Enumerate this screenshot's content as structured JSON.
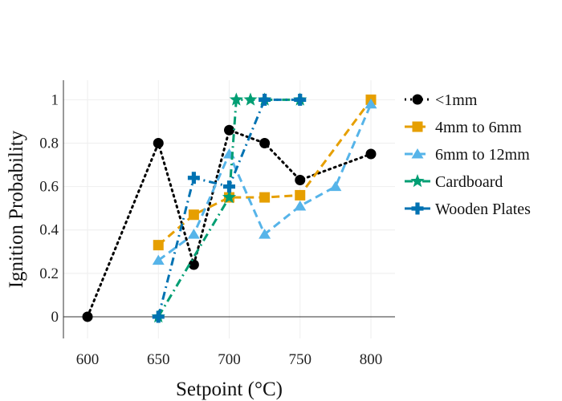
{
  "chart_data": {
    "type": "line",
    "xlabel": "Setpoint (°C)",
    "ylabel": "Ignition Probability",
    "xlim": [
      583,
      817
    ],
    "ylim": [
      -0.1,
      1.09
    ],
    "xticks": [
      600,
      650,
      700,
      750,
      800
    ],
    "yticks": [
      0,
      0.2,
      0.4,
      0.6,
      0.8,
      1
    ],
    "ytick_labels": [
      "0",
      "0.2",
      "0.4",
      "0.6",
      "0.8",
      "1"
    ],
    "grid": true,
    "legend_position": "right",
    "series": [
      {
        "name": "<1mm",
        "color": "#000000",
        "dash": "dot",
        "marker": "circle",
        "x": [
          600,
          650,
          675,
          700,
          725,
          750,
          800
        ],
        "y": [
          0,
          0.8,
          0.24,
          0.86,
          0.8,
          0.63,
          0.75
        ]
      },
      {
        "name": "4mm to 6mm",
        "color": "#E69F00",
        "dash": "dash",
        "marker": "square",
        "x": [
          650,
          675,
          700,
          725,
          750,
          800
        ],
        "y": [
          0.33,
          0.47,
          0.55,
          0.55,
          0.56,
          1
        ]
      },
      {
        "name": "6mm to 12mm",
        "color": "#56B4E9",
        "dash": "dash",
        "marker": "triangle",
        "x": [
          650,
          675,
          700,
          725,
          750,
          775,
          800
        ],
        "y": [
          0.26,
          0.38,
          0.75,
          0.38,
          0.51,
          0.6,
          0.98
        ]
      },
      {
        "name": "Cardboard",
        "color": "#009E73",
        "dash": "dashdot",
        "marker": "star",
        "x": [
          650,
          700,
          705,
          715,
          725,
          750
        ],
        "y": [
          0,
          0.55,
          1,
          1,
          1,
          1
        ]
      },
      {
        "name": "Wooden Plates",
        "color": "#0072B2",
        "dash": "dashdot",
        "marker": "cross",
        "x": [
          650,
          675,
          700,
          725,
          750
        ],
        "y": [
          0,
          0.64,
          0.6,
          1,
          1
        ]
      }
    ]
  }
}
